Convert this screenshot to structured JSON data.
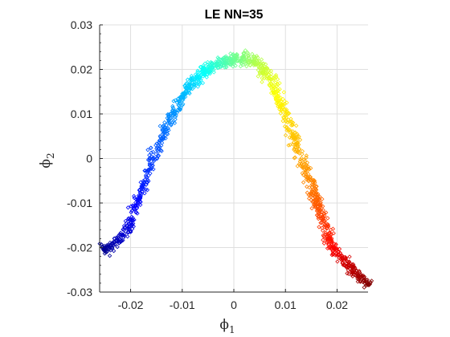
{
  "chart_data": {
    "type": "scatter",
    "title": "LE NN=35",
    "xlabel": {
      "base": "ϕ",
      "sub": "1"
    },
    "ylabel": {
      "base": "ϕ",
      "sub": "2"
    },
    "xlim": [
      -0.026,
      0.026
    ],
    "ylim": [
      -0.03,
      0.03
    ],
    "xticks": [
      -0.02,
      -0.01,
      0,
      0.01,
      0.02
    ],
    "xtick_labels": [
      "-0.02",
      "-0.01",
      "0",
      "0.01",
      "0.02"
    ],
    "yticks": [
      -0.03,
      -0.02,
      -0.01,
      0,
      0.01,
      0.02,
      0.03
    ],
    "ytick_labels": [
      "-0.03",
      "-0.02",
      "-0.01",
      "0",
      "0.01",
      "0.02",
      "0.03"
    ],
    "grid": true,
    "marker": "diamond-open",
    "colormap": "jet",
    "colormap_colors": [
      "#00008f",
      "#0000ff",
      "#00ffff",
      "#ffff00",
      "#ff0000",
      "#800000"
    ],
    "curve": {
      "x": [
        -0.0255,
        -0.0235,
        -0.0215,
        -0.02,
        -0.0185,
        -0.017,
        -0.0155,
        -0.014,
        -0.0125,
        -0.011,
        -0.0095,
        -0.008,
        -0.0065,
        -0.005,
        -0.0035,
        -0.002,
        -0.0005,
        0.0015,
        0.003,
        0.0045,
        0.006,
        0.0075,
        0.009,
        0.0105,
        0.012,
        0.0135,
        0.015,
        0.016,
        0.017,
        0.018,
        0.019,
        0.0205,
        0.0225,
        0.0245,
        0.0262
      ],
      "y": [
        -0.0205,
        -0.0195,
        -0.0175,
        -0.0145,
        -0.0095,
        -0.0045,
        0.0005,
        0.0045,
        0.008,
        0.0115,
        0.0145,
        0.017,
        0.0185,
        0.02,
        0.021,
        0.0215,
        0.022,
        0.0225,
        0.0225,
        0.0215,
        0.0195,
        0.017,
        0.013,
        0.0085,
        0.0035,
        -0.0015,
        -0.006,
        -0.0095,
        -0.013,
        -0.0165,
        -0.0195,
        -0.022,
        -0.0245,
        -0.0265,
        -0.0285
      ]
    }
  }
}
